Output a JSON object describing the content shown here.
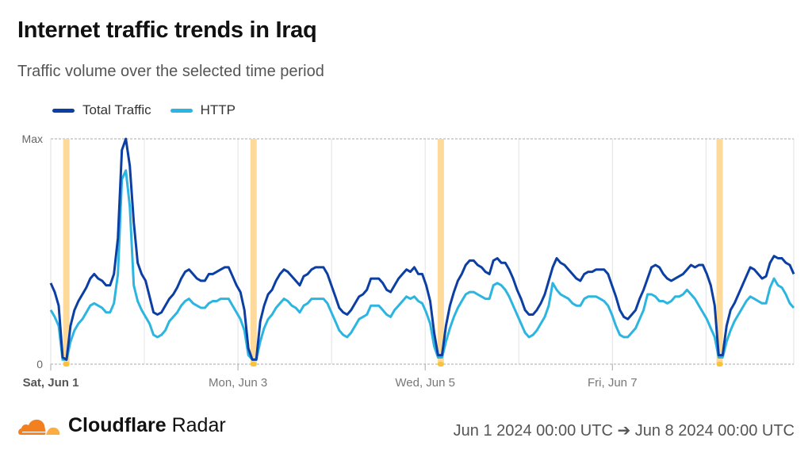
{
  "header": {
    "title": "Internet traffic trends in Iraq",
    "subtitle": "Traffic volume over the selected time period"
  },
  "footer": {
    "brand_bold": "Cloudflare",
    "brand_light": "Radar",
    "range": "Jun 1 2024 00:00 UTC ➔ Jun 8 2024 00:00 UTC"
  },
  "colors": {
    "total": "#0b3fa3",
    "http": "#2bb5e0",
    "outage": "#fdd99a",
    "outage_marker": "#f9c23c"
  },
  "chart_data": {
    "type": "line",
    "title": "Internet traffic trends in Iraq",
    "xlabel": "",
    "ylabel": "",
    "x_unit": "hours since Jun 1 2024 00:00 UTC",
    "xlim": [
      0,
      190.5
    ],
    "ylim": [
      0,
      100
    ],
    "y_ticks": [
      {
        "value": 0,
        "label": "0"
      },
      {
        "value": 100,
        "label": "Max"
      }
    ],
    "x_ticks": [
      {
        "value": 0,
        "label": "Sat, Jun 1",
        "bold": true
      },
      {
        "value": 48,
        "label": "Mon, Jun 3",
        "bold": false
      },
      {
        "value": 96,
        "label": "Wed, Jun 5",
        "bold": false
      },
      {
        "value": 144,
        "label": "Fri, Jun 7",
        "bold": false
      }
    ],
    "gridlines_x": [
      0,
      24,
      48,
      72,
      96,
      120,
      144,
      168,
      190.5
    ],
    "legend": "top-left",
    "outages": [
      4,
      52,
      100,
      171.5
    ],
    "series": [
      {
        "name": "Total Traffic",
        "values": [
          36,
          32,
          26,
          3,
          2,
          17,
          24,
          28,
          31,
          34,
          38,
          40,
          38,
          37,
          35,
          35,
          40,
          56,
          95,
          100,
          88,
          63,
          45,
          40,
          37,
          30,
          23,
          22,
          23,
          26,
          29,
          31,
          34,
          38,
          41,
          42,
          40,
          38,
          37,
          37,
          40,
          40,
          41,
          42,
          43,
          43,
          39,
          35,
          32,
          24,
          7,
          2,
          2,
          19,
          26,
          31,
          33,
          37,
          40,
          42,
          41,
          39,
          37,
          35,
          39,
          40,
          42,
          43,
          43,
          43,
          40,
          35,
          30,
          25,
          23,
          22,
          24,
          27,
          30,
          31,
          33,
          38,
          38,
          38,
          36,
          33,
          32,
          35,
          38,
          40,
          42,
          41,
          43,
          40,
          40,
          35,
          28,
          14,
          4,
          4,
          17,
          26,
          32,
          37,
          40,
          44,
          46,
          46,
          44,
          43,
          41,
          40,
          46,
          47,
          45,
          45,
          42,
          38,
          33,
          29,
          24,
          22,
          22,
          24,
          27,
          31,
          37,
          43,
          47,
          45,
          44,
          42,
          40,
          38,
          37,
          40,
          41,
          41,
          42,
          42,
          42,
          40,
          35,
          30,
          24,
          21,
          20,
          22,
          24,
          29,
          33,
          38,
          43,
          44,
          43,
          40,
          38,
          37,
          38,
          39,
          40,
          42,
          44,
          43,
          44,
          44,
          40,
          35,
          26,
          4,
          4,
          17,
          24,
          27,
          31,
          35,
          39,
          43,
          42,
          40,
          38,
          39,
          45,
          48,
          47,
          47,
          45,
          44,
          40
        ]
      },
      {
        "name": "HTTP",
        "values": [
          24,
          21,
          17,
          2,
          2,
          10,
          15,
          18,
          20,
          23,
          26,
          27,
          26,
          25,
          23,
          23,
          27,
          40,
          82,
          86,
          70,
          35,
          28,
          24,
          21,
          18,
          13,
          12,
          13,
          15,
          19,
          21,
          23,
          26,
          28,
          29,
          27,
          26,
          25,
          25,
          27,
          28,
          28,
          29,
          29,
          29,
          26,
          23,
          20,
          15,
          4,
          2,
          2,
          10,
          16,
          20,
          22,
          25,
          27,
          29,
          28,
          26,
          25,
          23,
          26,
          27,
          29,
          29,
          29,
          29,
          27,
          23,
          19,
          15,
          13,
          12,
          14,
          17,
          20,
          21,
          22,
          26,
          26,
          26,
          24,
          22,
          21,
          24,
          26,
          28,
          30,
          29,
          30,
          28,
          27,
          23,
          18,
          8,
          3,
          3,
          10,
          16,
          21,
          25,
          28,
          31,
          32,
          32,
          31,
          30,
          29,
          29,
          35,
          36,
          35,
          33,
          30,
          26,
          22,
          18,
          14,
          12,
          13,
          15,
          18,
          21,
          26,
          36,
          33,
          31,
          30,
          29,
          27,
          26,
          26,
          29,
          30,
          30,
          30,
          29,
          28,
          26,
          22,
          17,
          13,
          12,
          12,
          14,
          16,
          20,
          24,
          31,
          31,
          30,
          28,
          28,
          27,
          28,
          30,
          30,
          31,
          33,
          31,
          29,
          26,
          23,
          20,
          16,
          12,
          3,
          3,
          10,
          15,
          19,
          22,
          25,
          28,
          30,
          29,
          28,
          27,
          27,
          34,
          38,
          35,
          34,
          31,
          27,
          25
        ]
      }
    ]
  }
}
